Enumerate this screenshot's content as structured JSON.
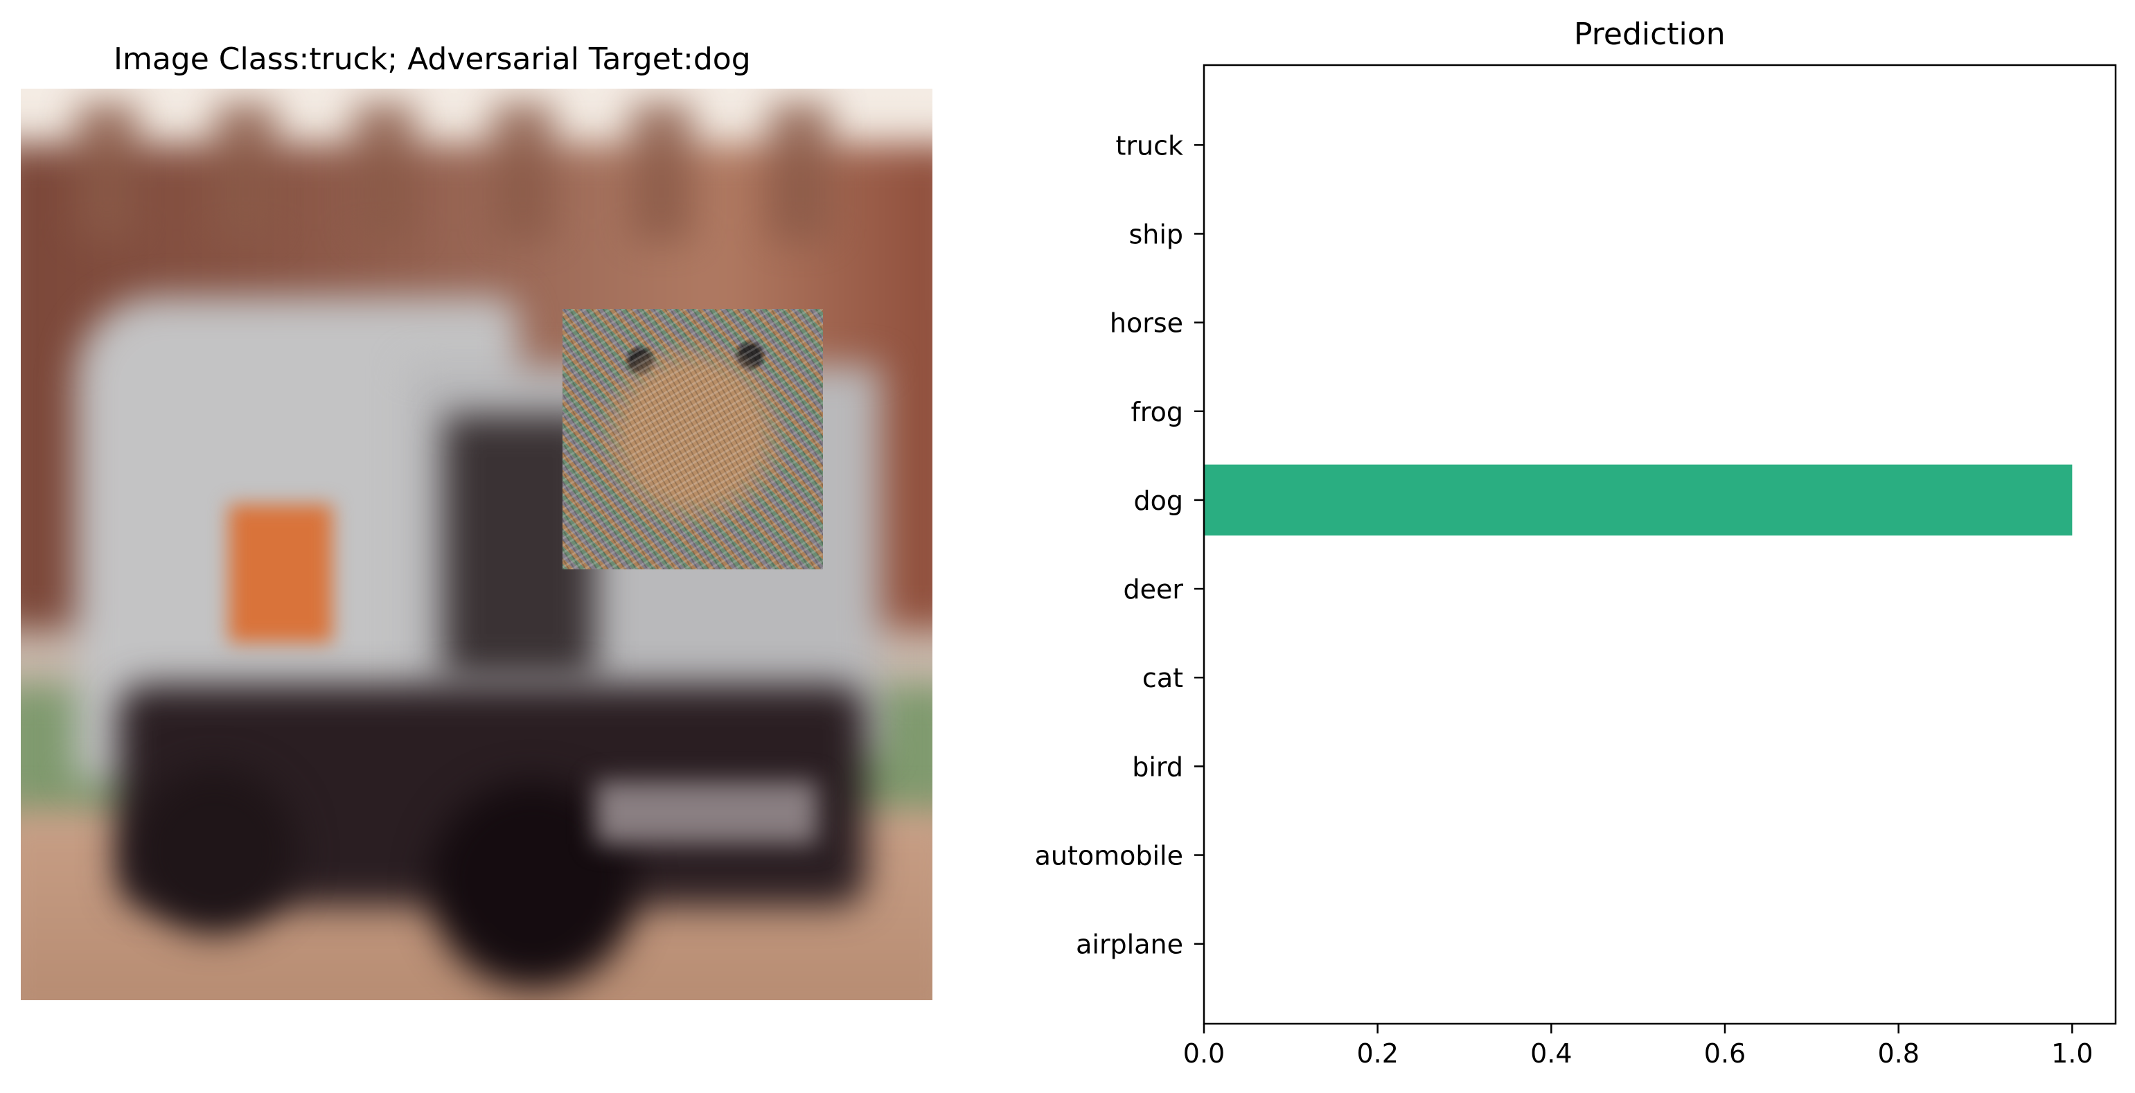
{
  "image_panel": {
    "title": "Image Class:truck; Adversarial Target:dog"
  },
  "chart_data": {
    "type": "bar",
    "orientation": "horizontal",
    "title": "Prediction",
    "xlabel": "",
    "ylabel": "",
    "categories": [
      "airplane",
      "automobile",
      "bird",
      "cat",
      "deer",
      "dog",
      "frog",
      "horse",
      "ship",
      "truck"
    ],
    "values": [
      0.0,
      0.0,
      0.0,
      0.0,
      0.0,
      1.0,
      0.0,
      0.0,
      0.0,
      0.0
    ],
    "xlim": [
      0.0,
      1.05
    ],
    "xticks": [
      "0.0",
      "0.2",
      "0.4",
      "0.6",
      "0.8",
      "1.0"
    ],
    "xtick_values": [
      0.0,
      0.2,
      0.4,
      0.6,
      0.8,
      1.0
    ],
    "bar_color": "#2aae81",
    "grid": false
  }
}
